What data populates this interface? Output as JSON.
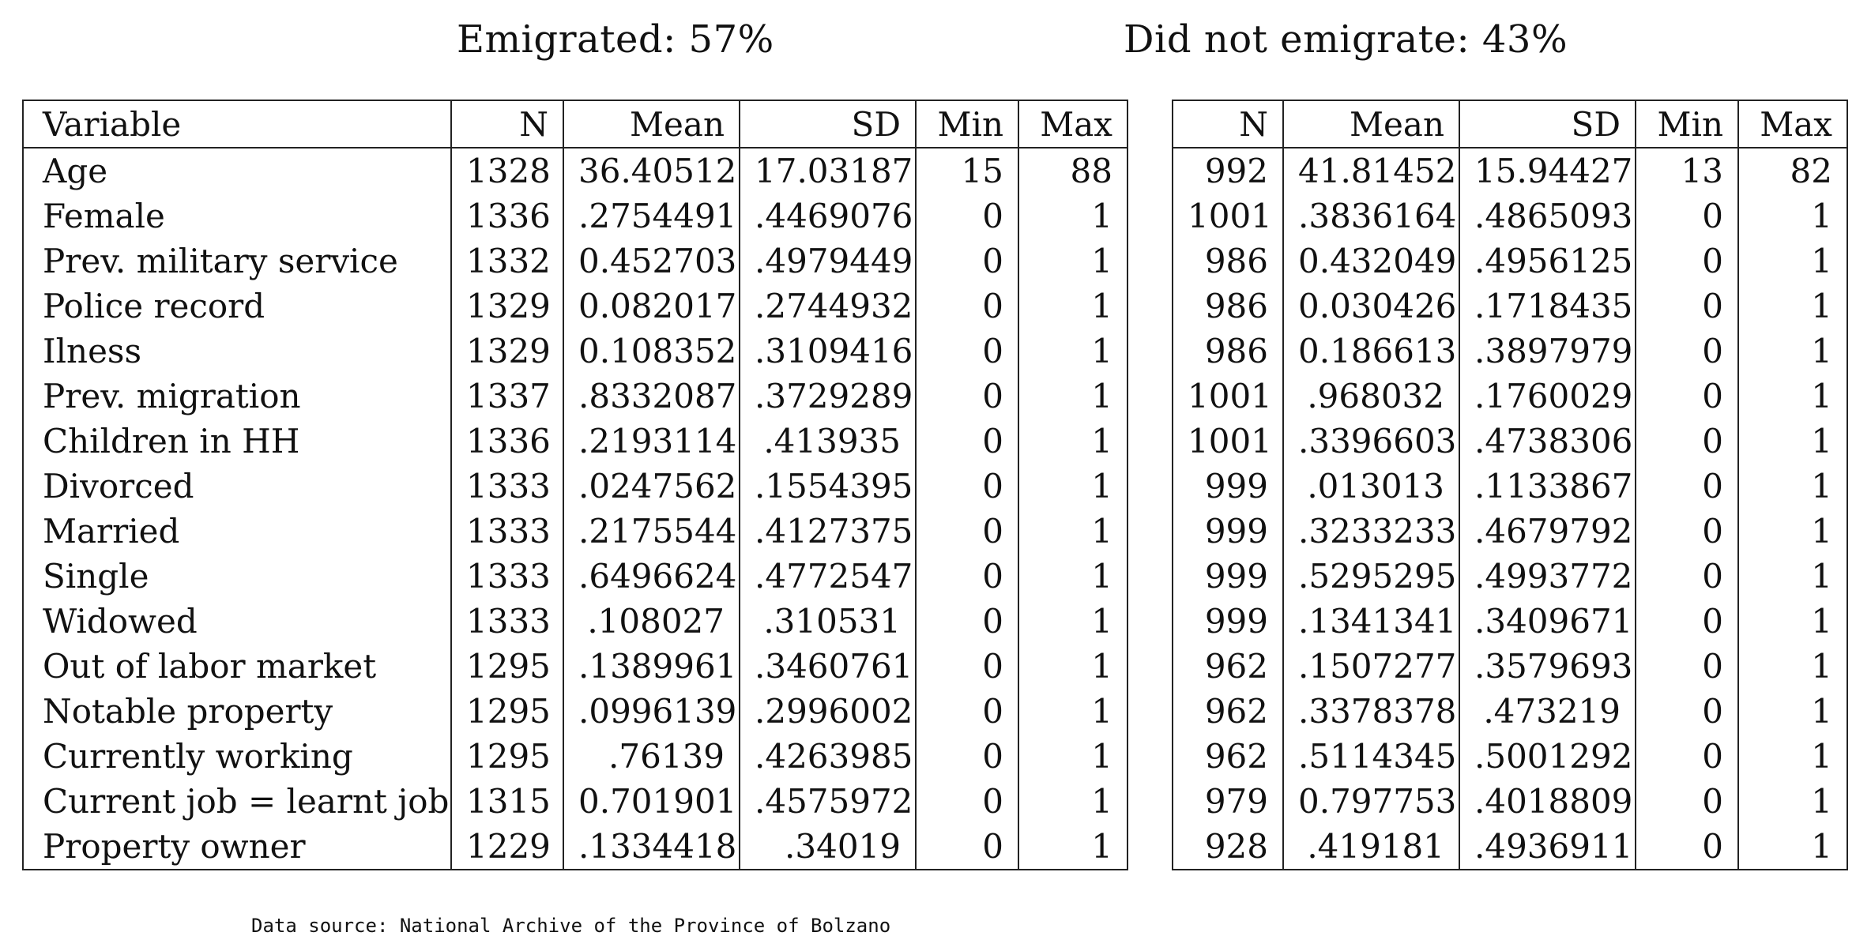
{
  "headings": {
    "left": "Emigrated: 57%",
    "right": "Did not emigrate: 43%"
  },
  "left_table": {
    "columns": [
      "Variable",
      "N",
      "Mean",
      "SD",
      "Min",
      "Max"
    ],
    "rows": [
      [
        "Age",
        "1328",
        "36.40512",
        "17.03187",
        "15",
        "88"
      ],
      [
        "Female",
        "1336",
        ".2754491",
        ".4469076",
        "0",
        "1"
      ],
      [
        "Prev. military service",
        "1332",
        "0.452703",
        ".4979449",
        "0",
        "1"
      ],
      [
        "Police record",
        "1329",
        "0.082017",
        ".2744932",
        "0",
        "1"
      ],
      [
        "Ilness",
        "1329",
        "0.108352",
        ".3109416",
        "0",
        "1"
      ],
      [
        "Prev. migration",
        "1337",
        ".8332087",
        ".3729289",
        "0",
        "1"
      ],
      [
        "Children in HH",
        "1336",
        ".2193114",
        ".413935",
        "0",
        "1"
      ],
      [
        "Divorced",
        "1333",
        ".0247562",
        ".1554395",
        "0",
        "1"
      ],
      [
        "Married",
        "1333",
        ".2175544",
        ".4127375",
        "0",
        "1"
      ],
      [
        "Single",
        "1333",
        ".6496624",
        ".4772547",
        "0",
        "1"
      ],
      [
        "Widowed",
        "1333",
        ".108027",
        ".310531",
        "0",
        "1"
      ],
      [
        "Out of labor market",
        "1295",
        ".1389961",
        ".3460761",
        "0",
        "1"
      ],
      [
        "Notable property",
        "1295",
        ".0996139",
        ".2996002",
        "0",
        "1"
      ],
      [
        "Currently working",
        "1295",
        ".76139",
        ".4263985",
        "0",
        "1"
      ],
      [
        "Current job = learnt job",
        "1315",
        "0.701901",
        ".4575972",
        "0",
        "1"
      ],
      [
        "Property owner",
        "1229",
        ".1334418",
        ".34019",
        "0",
        "1"
      ]
    ]
  },
  "right_table": {
    "columns": [
      "N",
      "Mean",
      "SD",
      "Min",
      "Max"
    ],
    "rows": [
      [
        "992",
        "41.81452",
        "15.94427",
        "13",
        "82"
      ],
      [
        "1001",
        ".3836164",
        ".4865093",
        "0",
        "1"
      ],
      [
        "986",
        "0.432049",
        ".4956125",
        "0",
        "1"
      ],
      [
        "986",
        "0.030426",
        ".1718435",
        "0",
        "1"
      ],
      [
        "986",
        "0.186613",
        ".3897979",
        "0",
        "1"
      ],
      [
        "1001",
        ".968032",
        ".1760029",
        "0",
        "1"
      ],
      [
        "1001",
        ".3396603",
        ".4738306",
        "0",
        "1"
      ],
      [
        "999",
        ".013013",
        ".1133867",
        "0",
        "1"
      ],
      [
        "999",
        ".3233233",
        ".4679792",
        "0",
        "1"
      ],
      [
        "999",
        ".5295295",
        ".4993772",
        "0",
        "1"
      ],
      [
        "999",
        ".1341341",
        ".3409671",
        "0",
        "1"
      ],
      [
        "962",
        ".1507277",
        ".3579693",
        "0",
        "1"
      ],
      [
        "962",
        ".3378378",
        ".473219",
        "0",
        "1"
      ],
      [
        "962",
        ".5114345",
        ".5001292",
        "0",
        "1"
      ],
      [
        "979",
        "0.797753",
        ".4018809",
        "0",
        "1"
      ],
      [
        "928",
        ".419181",
        ".4936911",
        "0",
        "1"
      ]
    ]
  },
  "source_note": "Data source: National Archive of the Province of Bolzano"
}
